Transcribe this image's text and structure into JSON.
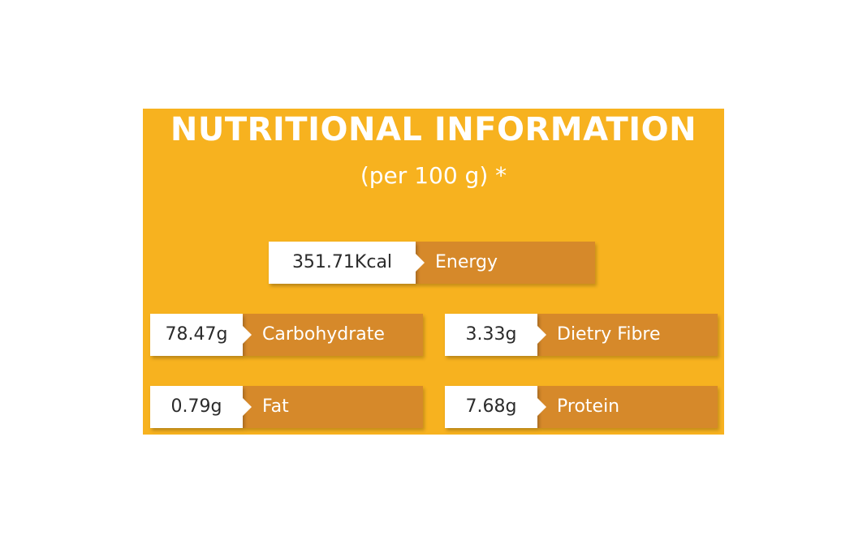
{
  "title": "NUTRITIONAL INFORMATION",
  "subtitle": "(per 100 g) *",
  "nutrients": {
    "energy": {
      "value": "351.71Kcal",
      "label": "Energy"
    },
    "carbohydrate": {
      "value": "78.47g",
      "label": "Carbohydrate"
    },
    "fibre": {
      "value": "3.33g",
      "label": "Dietry Fibre"
    },
    "fat": {
      "value": "0.79g",
      "label": "Fat"
    },
    "protein": {
      "value": "7.68g",
      "label": "Protein"
    }
  },
  "colors": {
    "panel": "#f7b21f",
    "label_box": "#d6892a",
    "value_box": "#ffffff",
    "text_light": "#ffffff",
    "text_dark": "#2b2b2b"
  }
}
